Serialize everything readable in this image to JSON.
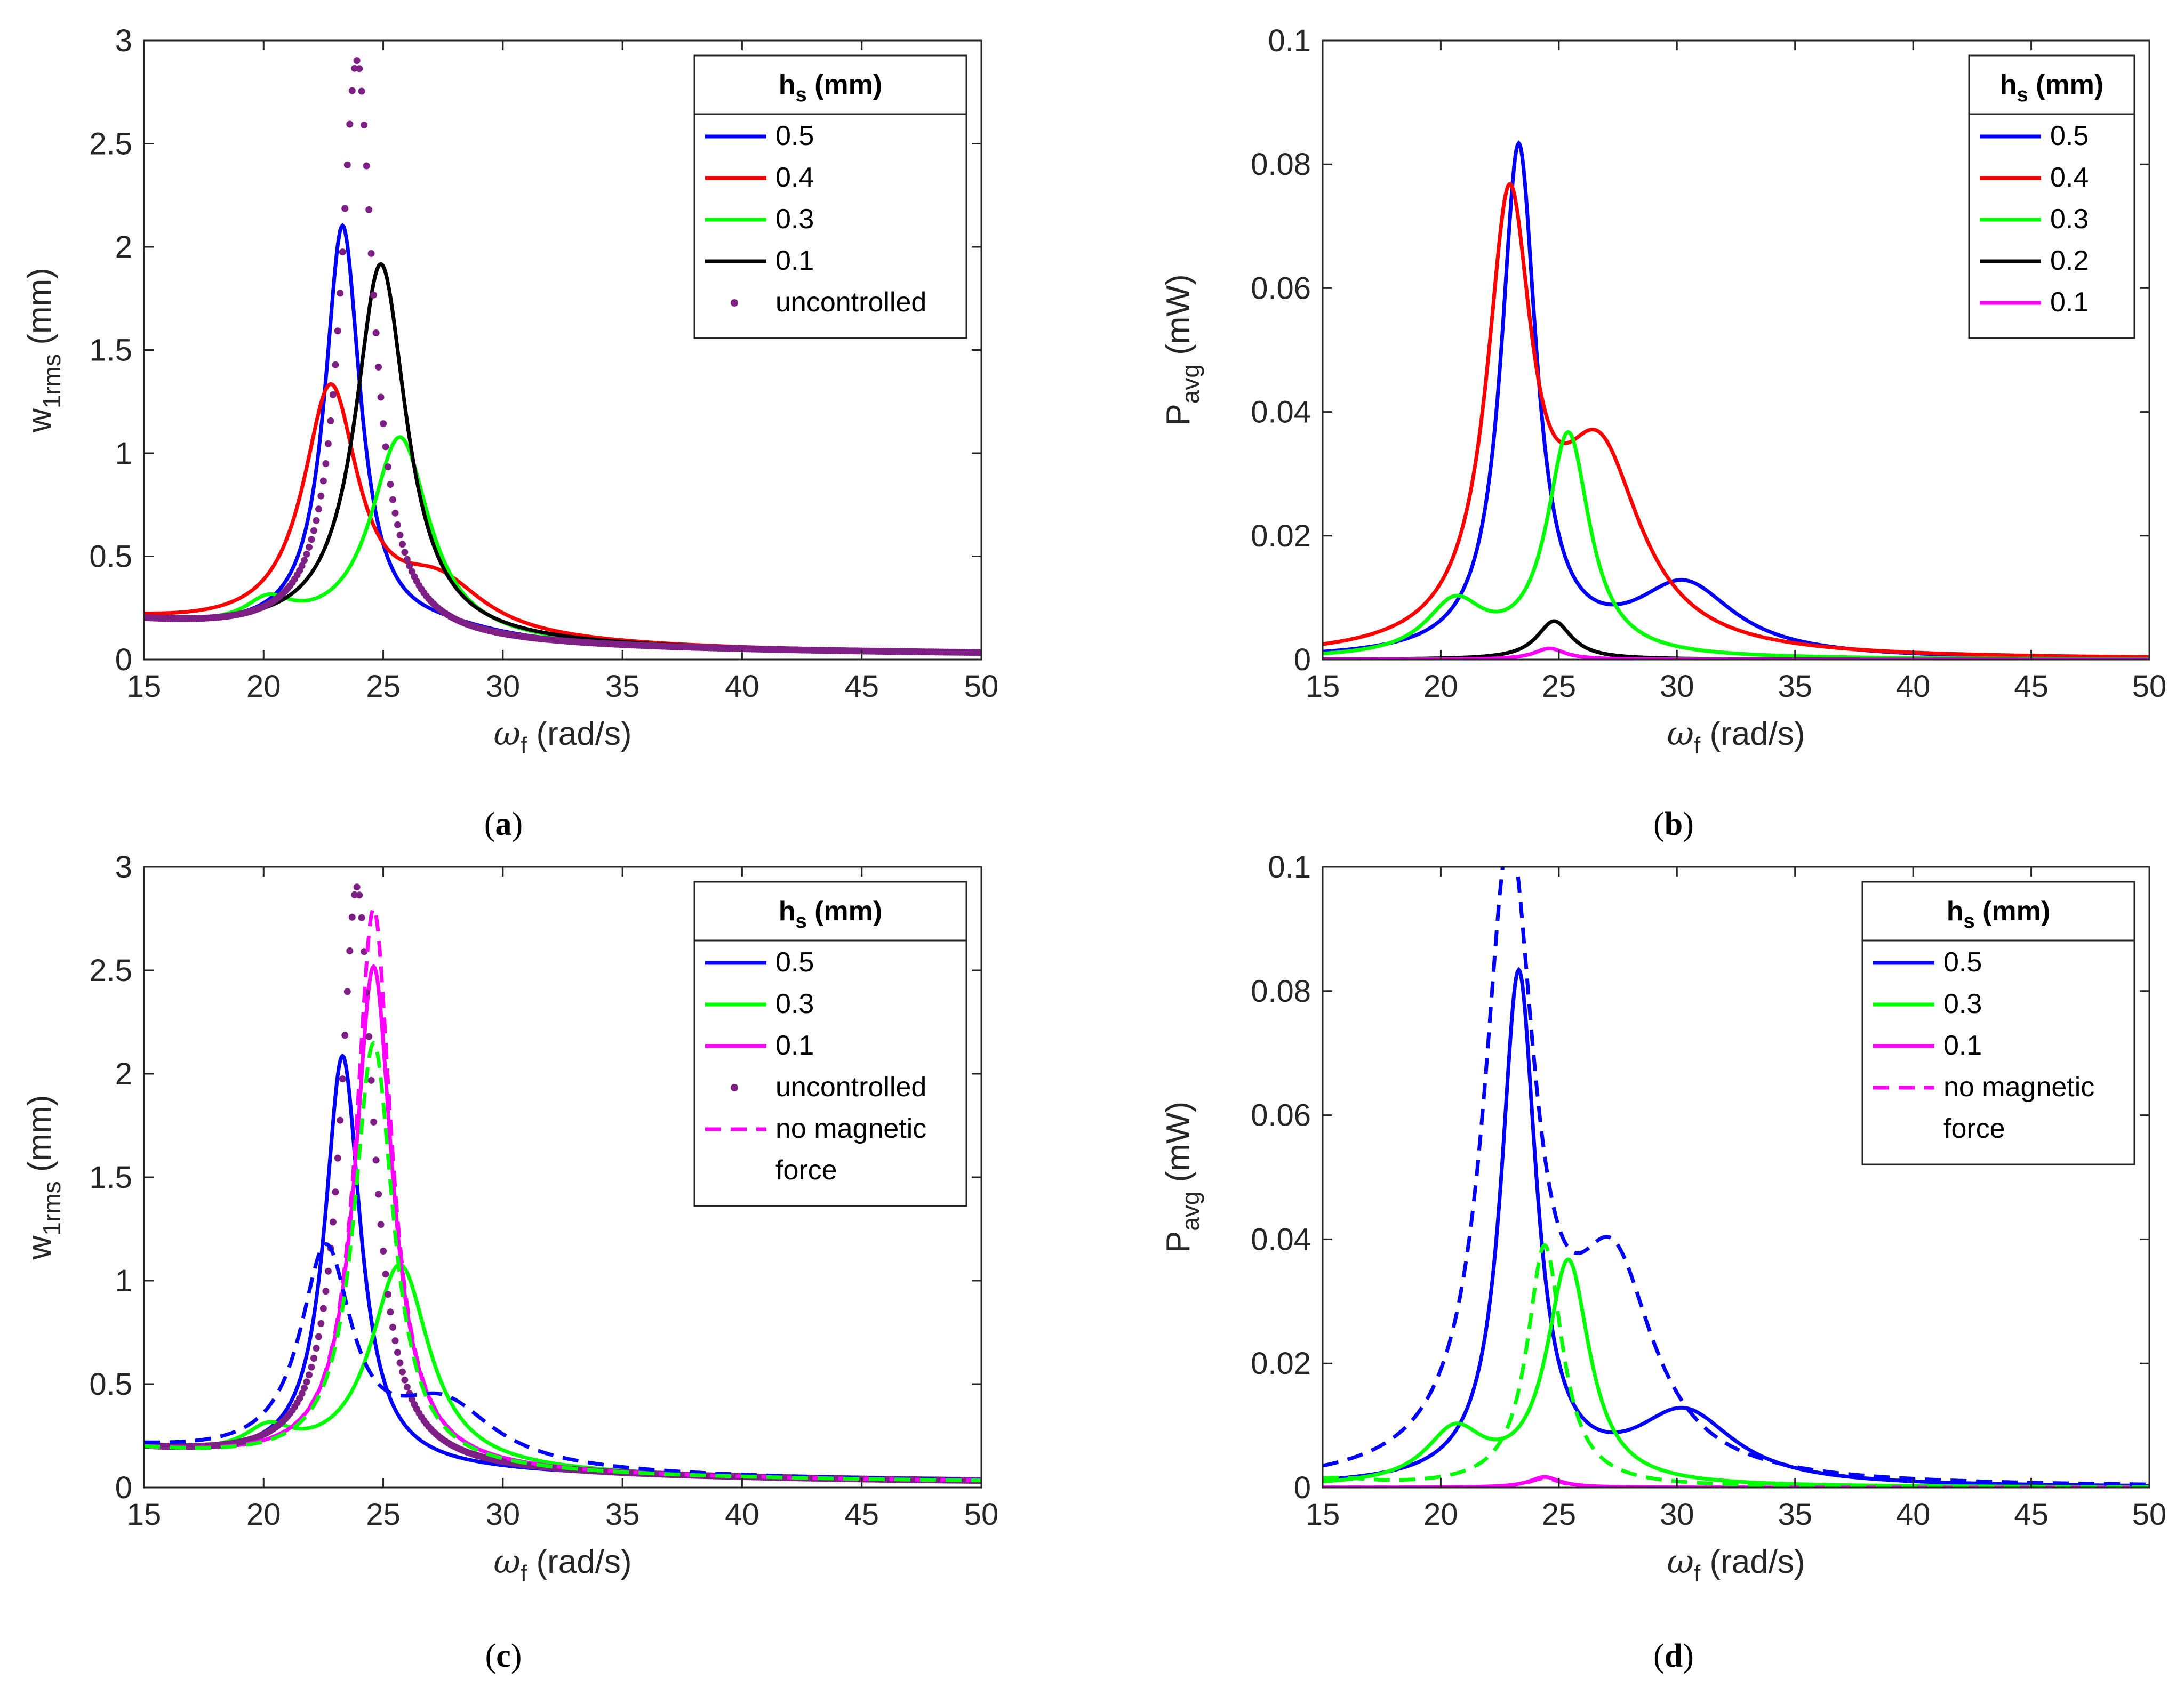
{
  "figure": {
    "panels": [
      {
        "id": "a",
        "caption_letter": "a"
      },
      {
        "id": "b",
        "caption_letter": "b"
      },
      {
        "id": "c",
        "caption_letter": "c"
      },
      {
        "id": "d",
        "caption_letter": "d"
      }
    ]
  },
  "colors": {
    "blue": "#0000ff",
    "red": "#ff0000",
    "green": "#00ff00",
    "black": "#000000",
    "magenta": "#ff00ff",
    "purple": "#7e1f86",
    "axis": "#262626"
  },
  "chart_data": [
    {
      "id": "a",
      "type": "line",
      "title": "",
      "xlabel": "ω_f (rad/s)",
      "xlabel_main": "ω",
      "xlabel_sub": "f",
      "xlabel_rest": " (rad/s)",
      "ylabel": "w_1rms (mm)",
      "ylabel_main": "w",
      "ylabel_sub": "1rms",
      "ylabel_rest": " (mm)",
      "xlim": [
        15,
        50
      ],
      "ylim": [
        0,
        3
      ],
      "xticks": [
        15,
        20,
        25,
        30,
        35,
        40,
        45,
        50
      ],
      "yticks": [
        0,
        0.5,
        1,
        1.5,
        2,
        2.5,
        3
      ],
      "ytick_labels": [
        "0",
        "0.5",
        "1",
        "1.5",
        "2",
        "2.5",
        "3"
      ],
      "legend": {
        "title_main": "h",
        "title_sub": "s",
        "title_rest": " (mm)",
        "position": "top-right"
      },
      "series": [
        {
          "name": "0.5",
          "color": "#0000ff",
          "style": "solid",
          "peaks": [
            {
              "x": 23.3,
              "y": 1.98,
              "w": 0.9
            },
            {
              "x": 27.5,
              "y": 0.05,
              "w": 3.0
            }
          ],
          "base": {
            "amp": 0.16,
            "x0": 15,
            "decay": 0.0,
            "floor": 0.15
          }
        },
        {
          "name": "0.4",
          "color": "#ff0000",
          "style": "solid",
          "peaks": [
            {
              "x": 22.8,
              "y": 1.17,
              "w": 1.4
            },
            {
              "x": 27.3,
              "y": 0.25,
              "w": 2.4
            }
          ]
        },
        {
          "name": "0.3",
          "color": "#00ff00",
          "style": "solid",
          "peaks": [
            {
              "x": 20.2,
              "y": 0.12,
              "w": 1.2
            },
            {
              "x": 25.7,
              "y": 0.98,
              "w": 1.5
            }
          ]
        },
        {
          "name": "0.1",
          "color": "#000000",
          "style": "solid",
          "peaks": [
            {
              "x": 24.9,
              "y": 1.82,
              "w": 1.3
            }
          ]
        },
        {
          "name": "uncontrolled",
          "color": "#7e1f86",
          "style": "dots",
          "peaks": [
            {
              "x": 23.9,
              "y": 2.8,
              "w": 0.85
            }
          ]
        }
      ]
    },
    {
      "id": "b",
      "type": "line",
      "title": "",
      "xlabel": "ω_f (rad/s)",
      "xlabel_main": "ω",
      "xlabel_sub": "f",
      "xlabel_rest": " (rad/s)",
      "ylabel": "P_avg (mW)",
      "ylabel_main": "P",
      "ylabel_sub": "avg",
      "ylabel_rest": " (mW)",
      "xlim": [
        15,
        50
      ],
      "ylim": [
        0,
        0.1
      ],
      "xticks": [
        15,
        20,
        25,
        30,
        35,
        40,
        45,
        50
      ],
      "yticks": [
        0,
        0.02,
        0.04,
        0.06,
        0.08,
        0.1
      ],
      "ytick_labels": [
        "0",
        "0.02",
        "0.04",
        "0.06",
        "0.08",
        "0.1"
      ],
      "legend": {
        "title_main": "h",
        "title_sub": "s",
        "title_rest": " (mm)",
        "position": "top-right"
      },
      "series": [
        {
          "name": "0.5",
          "color": "#0000ff",
          "style": "solid",
          "peaks": [
            {
              "x": 23.3,
              "y": 0.082,
              "w": 0.9
            },
            {
              "x": 30.3,
              "y": 0.0115,
              "w": 2.6
            }
          ]
        },
        {
          "name": "0.4",
          "color": "#ff0000",
          "style": "solid",
          "peaks": [
            {
              "x": 22.9,
              "y": 0.069,
              "w": 1.15
            },
            {
              "x": 26.7,
              "y": 0.031,
              "w": 2.2
            }
          ]
        },
        {
          "name": "0.3",
          "color": "#00ff00",
          "style": "solid",
          "peaks": [
            {
              "x": 20.6,
              "y": 0.0085,
              "w": 1.5
            },
            {
              "x": 25.4,
              "y": 0.036,
              "w": 1.1
            }
          ]
        },
        {
          "name": "0.2",
          "color": "#000000",
          "style": "solid",
          "peaks": [
            {
              "x": 24.8,
              "y": 0.0062,
              "w": 0.9
            }
          ]
        },
        {
          "name": "0.1",
          "color": "#ff00ff",
          "style": "solid",
          "peaks": [
            {
              "x": 24.6,
              "y": 0.0018,
              "w": 0.8
            }
          ]
        }
      ]
    },
    {
      "id": "c",
      "type": "line",
      "title": "",
      "xlabel": "ω_f (rad/s)",
      "xlabel_main": "ω",
      "xlabel_sub": "f",
      "xlabel_rest": " (rad/s)",
      "ylabel": "w_1rms (mm)",
      "ylabel_main": "w",
      "ylabel_sub": "1rms",
      "ylabel_rest": " (mm)",
      "xlim": [
        15,
        50
      ],
      "ylim": [
        0,
        3
      ],
      "xticks": [
        15,
        20,
        25,
        30,
        35,
        40,
        45,
        50
      ],
      "yticks": [
        0,
        0.5,
        1,
        1.5,
        2,
        2.5,
        3
      ],
      "ytick_labels": [
        "0",
        "0.5",
        "1",
        "1.5",
        "2",
        "2.5",
        "3"
      ],
      "legend": {
        "title_main": "h",
        "title_sub": "s",
        "title_rest": " (mm)",
        "position": "top-right",
        "extra_entry": [
          "no magnetic",
          "force"
        ]
      },
      "series": [
        {
          "name": "0.5",
          "color": "#0000ff",
          "style": "solid",
          "peaks": [
            {
              "x": 23.3,
              "y": 1.98,
              "w": 0.9
            }
          ]
        },
        {
          "name": "0.3",
          "color": "#00ff00",
          "style": "solid",
          "peaks": [
            {
              "x": 20.2,
              "y": 0.12,
              "w": 1.2
            },
            {
              "x": 25.7,
              "y": 0.98,
              "w": 1.5
            }
          ]
        },
        {
          "name": "0.1",
          "color": "#ff00ff",
          "style": "solid",
          "peaks": [
            {
              "x": 24.6,
              "y": 2.42,
              "w": 0.95
            }
          ]
        },
        {
          "name": "uncontrolled",
          "color": "#7e1f86",
          "style": "dots",
          "peaks": [
            {
              "x": 23.9,
              "y": 2.8,
              "w": 0.85
            }
          ]
        },
        {
          "name": "no magnetic force",
          "color": "#ff00ff",
          "style": "dashed",
          "legend": false,
          "peaks": [
            {
              "x": 24.6,
              "y": 2.7,
              "w": 0.9
            }
          ]
        },
        {
          "name": "0.5 (no magnetic force)",
          "color": "#0000ff",
          "style": "dashed",
          "legend": false,
          "peaks": [
            {
              "x": 22.6,
              "y": 1.0,
              "w": 1.3
            },
            {
              "x": 27.5,
              "y": 0.3,
              "w": 2.6
            }
          ]
        },
        {
          "name": "0.3 (no magnetic force)",
          "color": "#00ff00",
          "style": "dashed",
          "legend": false,
          "peaks": [
            {
              "x": 24.6,
              "y": 2.05,
              "w": 1.0
            }
          ]
        }
      ]
    },
    {
      "id": "d",
      "type": "line",
      "title": "",
      "xlabel": "ω_f (rad/s)",
      "xlabel_main": "ω",
      "xlabel_sub": "f",
      "xlabel_rest": " (rad/s)",
      "ylabel": "P_avg (mW)",
      "ylabel_main": "P",
      "ylabel_sub": "avg",
      "ylabel_rest": " (mW)",
      "xlim": [
        15,
        50
      ],
      "ylim": [
        0,
        0.1
      ],
      "xticks": [
        15,
        20,
        25,
        30,
        35,
        40,
        45,
        50
      ],
      "yticks": [
        0,
        0.02,
        0.04,
        0.06,
        0.08,
        0.1
      ],
      "ytick_labels": [
        "0",
        "0.02",
        "0.04",
        "0.06",
        "0.08",
        "0.1"
      ],
      "legend": {
        "title_main": "h",
        "title_sub": "s",
        "title_rest": " (mm)",
        "position": "top-right",
        "extra_entry": [
          "no magnetic",
          "force"
        ]
      },
      "series": [
        {
          "name": "0.5",
          "color": "#0000ff",
          "style": "solid",
          "peaks": [
            {
              "x": 23.3,
              "y": 0.082,
              "w": 0.9
            },
            {
              "x": 30.3,
              "y": 0.0115,
              "w": 2.6
            }
          ]
        },
        {
          "name": "0.3",
          "color": "#00ff00",
          "style": "solid",
          "peaks": [
            {
              "x": 20.6,
              "y": 0.0085,
              "w": 1.5
            },
            {
              "x": 25.4,
              "y": 0.036,
              "w": 1.1
            }
          ]
        },
        {
          "name": "0.1",
          "color": "#ff00ff",
          "style": "solid",
          "peaks": [
            {
              "x": 24.4,
              "y": 0.0017,
              "w": 0.8
            }
          ]
        },
        {
          "name": "no magnetic force",
          "color": "#ff00ff",
          "style": "dashed",
          "legend": false,
          "peaks": [
            {
              "x": 24.4,
              "y": 0.0015,
              "w": 0.8
            }
          ]
        },
        {
          "name": "0.5 (no magnetic force)",
          "color": "#0000ff",
          "style": "dashed",
          "legend": false,
          "peaks": [
            {
              "x": 22.9,
              "y": 0.099,
              "w": 1.3
            },
            {
              "x": 27.3,
              "y": 0.032,
              "w": 2.1
            }
          ]
        },
        {
          "name": "0.3 (no magnetic force)",
          "color": "#00ff00",
          "style": "dashed",
          "legend": false,
          "peaks": [
            {
              "x": 24.4,
              "y": 0.039,
              "w": 0.9
            },
            {
              "x": 15.5,
              "y": 0.0012,
              "w": 2.0
            }
          ]
        }
      ]
    }
  ]
}
